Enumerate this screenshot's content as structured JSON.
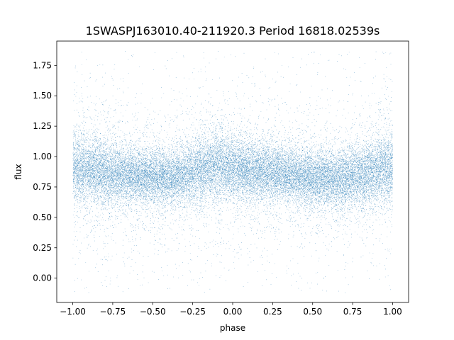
{
  "chart_data": {
    "type": "scatter",
    "title": "1SWASPJ163010.40-211920.3 Period 16818.02539s",
    "xlabel": "phase",
    "ylabel": "flux",
    "xlim": [
      -1.1,
      1.1
    ],
    "ylim": [
      -0.2,
      1.95
    ],
    "xticks": [
      "−1.00",
      "−0.75",
      "−0.50",
      "−0.25",
      "0.00",
      "0.25",
      "0.50",
      "0.75",
      "1.00"
    ],
    "yticks": [
      "0.00",
      "0.25",
      "0.50",
      "0.75",
      "1.00",
      "1.25",
      "1.50",
      "1.75"
    ],
    "grid": false,
    "legend": "none",
    "marker_color": "#1f77b4",
    "series": [
      {
        "x_range": [
          -1.0,
          1.0
        ],
        "approx_points": 30000,
        "profile": {
          "phase": [
            -1.0,
            -0.85,
            -0.7,
            -0.55,
            -0.4,
            -0.3,
            -0.15,
            -0.1,
            0.0,
            0.15,
            0.3,
            0.45,
            0.55,
            0.7,
            0.85,
            1.0
          ],
          "median_flux": [
            0.92,
            0.88,
            0.85,
            0.83,
            0.82,
            0.84,
            0.92,
            0.93,
            0.9,
            0.88,
            0.86,
            0.83,
            0.82,
            0.82,
            0.87,
            0.92
          ],
          "core_sd": [
            0.14,
            0.13,
            0.12,
            0.11,
            0.11,
            0.12,
            0.14,
            0.14,
            0.13,
            0.12,
            0.11,
            0.11,
            0.11,
            0.12,
            0.13,
            0.14
          ]
        },
        "outlier_range": [
          -0.12,
          1.87
        ]
      }
    ]
  }
}
